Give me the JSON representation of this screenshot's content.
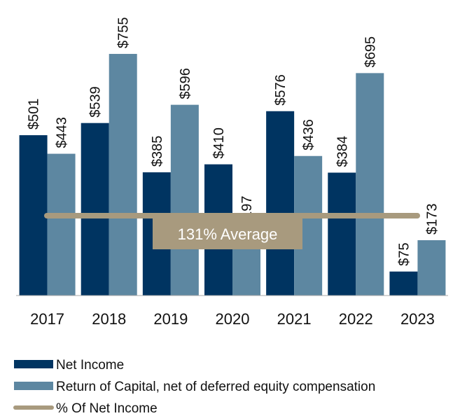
{
  "chart_data": {
    "type": "bar",
    "categories": [
      "2017",
      "2018",
      "2019",
      "2020",
      "2021",
      "2022",
      "2023"
    ],
    "series": [
      {
        "name": "Net Income",
        "color": "#003461",
        "values": [
          501,
          539,
          385,
          410,
          576,
          384,
          75
        ],
        "value_labels": [
          "$501",
          "$539",
          "$385",
          "$410",
          "$576",
          "$384",
          "$75"
        ]
      },
      {
        "name": "Return of Capital, net of deferred equity compensation",
        "color": "#5d87a1",
        "values": [
          443,
          755,
          596,
          197,
          436,
          695,
          173
        ],
        "value_labels": [
          "$443",
          "$755",
          "$596",
          "$197",
          "$436",
          "$695",
          "$173"
        ]
      }
    ],
    "average_line": {
      "name": "% Of Net Income",
      "color": "#a89a7e",
      "annotation": "131% Average"
    },
    "ylim": [
      0,
      800
    ]
  }
}
